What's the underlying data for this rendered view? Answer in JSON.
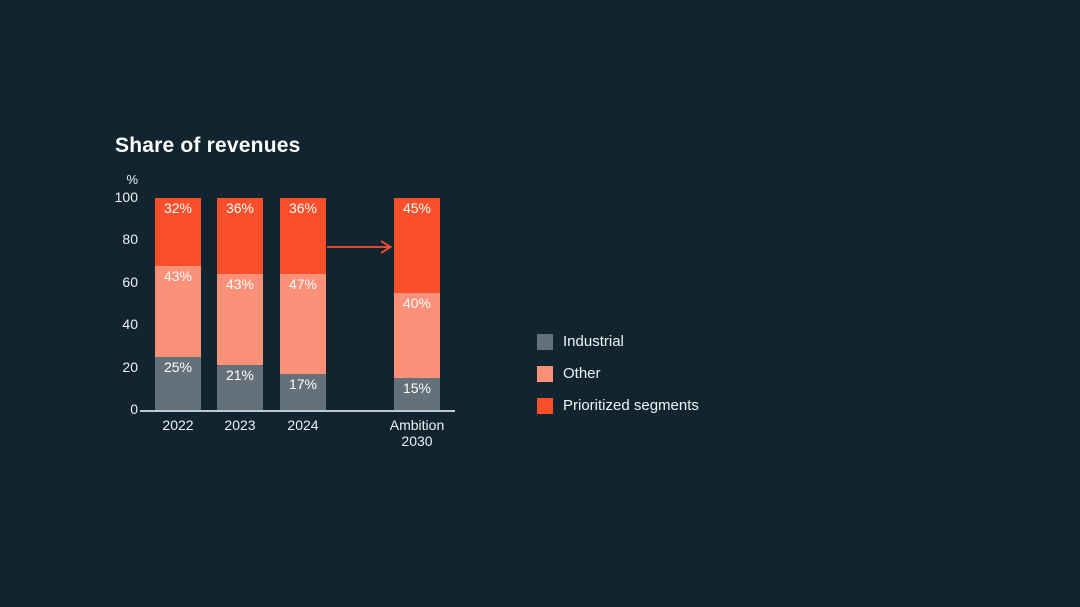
{
  "page": {
    "background_color": "#112430"
  },
  "chart_data": {
    "type": "bar",
    "stacked": true,
    "title": "Share of revenues",
    "ylabel": "%",
    "xlabel": "",
    "ylim": [
      0,
      100
    ],
    "yticks": [
      0,
      20,
      40,
      60,
      80,
      100
    ],
    "grid": false,
    "legend_position": "right",
    "categories": [
      "2022",
      "2023",
      "2024",
      "Ambition 2030"
    ],
    "series": [
      {
        "name": "Industrial",
        "color": "#64707A",
        "values": [
          25,
          21,
          17,
          15
        ]
      },
      {
        "name": "Other",
        "color": "#FC9078",
        "values": [
          43,
          43,
          47,
          40
        ]
      },
      {
        "name": "Prioritized segments",
        "color": "#FB4F2B",
        "values": [
          32,
          36,
          36,
          45
        ]
      }
    ],
    "value_label_format": "{v}%",
    "annotations": [
      {
        "type": "arrow",
        "from_category": "2024",
        "to_category": "Ambition 2030",
        "y": 77,
        "color": "#FB4F2B"
      }
    ]
  },
  "legend": {
    "items": [
      {
        "label": "Industrial",
        "color": "#64707A"
      },
      {
        "label": "Other",
        "color": "#FC9078"
      },
      {
        "label": "Prioritized segments",
        "color": "#FB4F2B"
      }
    ]
  }
}
